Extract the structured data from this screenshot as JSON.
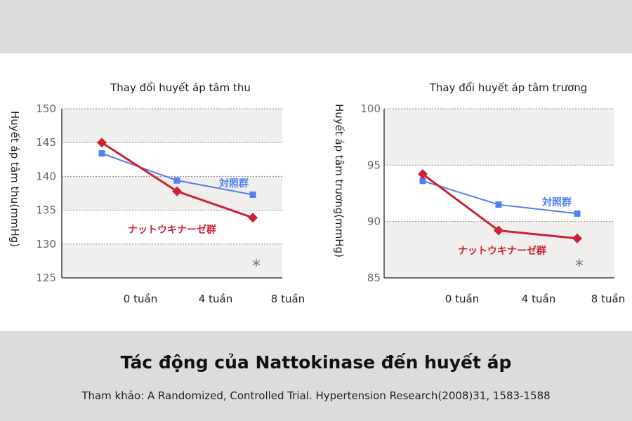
{
  "caption": {
    "title": "Tác động của Nattokinase đến huyết áp",
    "source": "Tham khảo: A Randomized, Controlled Trial. Hypertension Research(2008)31, 1583-1588"
  },
  "colors": {
    "control": "#4f7ff0",
    "natto": "#cc2233",
    "band": "#f0efed",
    "background_band": "#dcdcdc"
  },
  "chart_data": [
    {
      "type": "line",
      "title": "Thay đổi huyết áp tâm thu",
      "ylabel": "Huyết áp tâm thu(mmHg)",
      "xlabel": "",
      "categories": [
        "0 tuần",
        "4 tuần",
        "8 tuần"
      ],
      "ylim": [
        125,
        150
      ],
      "yticks": [
        125,
        130,
        135,
        140,
        145,
        150
      ],
      "grid": true,
      "series": [
        {
          "name": "対照群",
          "marker": "square",
          "color": "#4f7ff0",
          "values": [
            143.4,
            139.4,
            137.3
          ]
        },
        {
          "name": "ナットウキナーゼ群",
          "marker": "diamond",
          "color": "#cc2233",
          "values": [
            145.0,
            137.8,
            133.9
          ]
        }
      ],
      "annotation": "*"
    },
    {
      "type": "line",
      "title": "Thay đổi huyết áp tâm trương",
      "ylabel": "Huyết áp tâm trương(mmHg)",
      "xlabel": "",
      "categories": [
        "0 tuần",
        "4 tuần",
        "8 tuần"
      ],
      "ylim": [
        85,
        100
      ],
      "yticks": [
        85,
        90,
        95,
        100
      ],
      "grid": true,
      "series": [
        {
          "name": "対照群",
          "marker": "square",
          "color": "#4f7ff0",
          "values": [
            93.6,
            91.5,
            90.7
          ]
        },
        {
          "name": "ナットウキナーゼ群",
          "marker": "diamond",
          "color": "#cc2233",
          "values": [
            94.2,
            89.2,
            88.5
          ]
        }
      ],
      "annotation": "*"
    }
  ]
}
